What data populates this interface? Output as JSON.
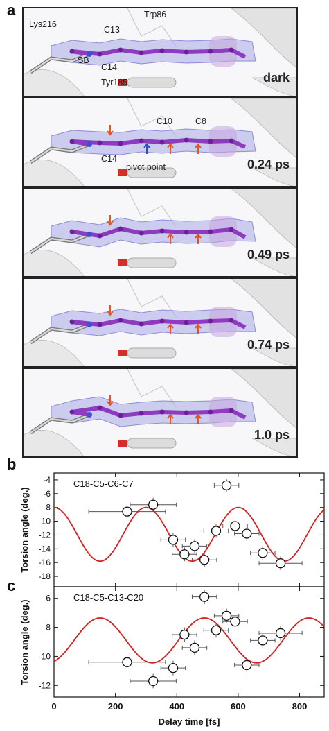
{
  "panel_a": {
    "letter": "a",
    "labels": {
      "lys": "Lys216",
      "trp": "Trp86",
      "c13": "C13",
      "sb": "SB",
      "c14": "C14",
      "tyr": "Tyr185",
      "c10": "C10",
      "c8": "C8",
      "c14b": "C14",
      "pivot": "pivot point"
    },
    "frames": [
      {
        "time": "dark"
      },
      {
        "time": "0.24 ps"
      },
      {
        "time": "0.49 ps"
      },
      {
        "time": "0.74 ps"
      },
      {
        "time": "1.0 ps"
      }
    ],
    "colors": {
      "chromophore": "#8e3bbf",
      "density": "#a9a9e6",
      "arrow_orange": "#e8541c",
      "arrow_blue": "#1f4fd6"
    }
  },
  "chart_data": [
    {
      "panel": "b",
      "type": "scatter",
      "title": "C18-C5-C6-C7",
      "xlim": [
        0,
        880
      ],
      "ylim": [
        -19.5,
        -3
      ],
      "yticks": [
        -4,
        -6,
        -8,
        -10,
        -12,
        -14,
        -16,
        -18
      ],
      "points": [
        {
          "x": 238,
          "y": -8.6,
          "xerr": 125,
          "yerr": 1.0
        },
        {
          "x": 323,
          "y": -7.6,
          "xerr": 75,
          "yerr": 1.0
        },
        {
          "x": 388,
          "y": -12.7,
          "xerr": 40,
          "yerr": 1.0
        },
        {
          "x": 425,
          "y": -14.8,
          "xerr": 40,
          "yerr": 1.0
        },
        {
          "x": 458,
          "y": -13.6,
          "xerr": 40,
          "yerr": 1.0
        },
        {
          "x": 490,
          "y": -15.6,
          "xerr": 40,
          "yerr": 1.0
        },
        {
          "x": 528,
          "y": -11.4,
          "xerr": 40,
          "yerr": 1.0
        },
        {
          "x": 562,
          "y": -4.8,
          "xerr": 40,
          "yerr": 1.0
        },
        {
          "x": 590,
          "y": -10.7,
          "xerr": 40,
          "yerr": 1.0
        },
        {
          "x": 628,
          "y": -11.8,
          "xerr": 40,
          "yerr": 1.0
        },
        {
          "x": 680,
          "y": -14.6,
          "xerr": 40,
          "yerr": 1.0
        },
        {
          "x": 738,
          "y": -16.1,
          "xerr": 70,
          "yerr": 1.0
        }
      ],
      "fit": {
        "color": "#d61f1f",
        "mean": -11.9,
        "amplitude": 3.9,
        "period": 300,
        "phase_max_at": 300
      }
    },
    {
      "panel": "c",
      "type": "scatter",
      "title": "C18-C5-C13-C20",
      "xlim": [
        0,
        880
      ],
      "ylim": [
        -12.8,
        -5.2
      ],
      "yticks": [
        -6,
        -8,
        -10,
        -12
      ],
      "xticks": [
        0,
        200,
        400,
        600,
        800
      ],
      "xlabel": "Delay time [fs]",
      "points": [
        {
          "x": 238,
          "y": -10.4,
          "xerr": 125,
          "yerr": 0.5
        },
        {
          "x": 323,
          "y": -11.7,
          "xerr": 75,
          "yerr": 0.5
        },
        {
          "x": 388,
          "y": -10.8,
          "xerr": 40,
          "yerr": 0.5
        },
        {
          "x": 425,
          "y": -8.5,
          "xerr": 40,
          "yerr": 0.5
        },
        {
          "x": 458,
          "y": -9.4,
          "xerr": 40,
          "yerr": 0.5
        },
        {
          "x": 490,
          "y": -5.9,
          "xerr": 40,
          "yerr": 0.5
        },
        {
          "x": 528,
          "y": -8.2,
          "xerr": 40,
          "yerr": 0.5
        },
        {
          "x": 562,
          "y": -7.2,
          "xerr": 40,
          "yerr": 0.5
        },
        {
          "x": 590,
          "y": -7.6,
          "xerr": 40,
          "yerr": 0.5
        },
        {
          "x": 628,
          "y": -10.6,
          "xerr": 40,
          "yerr": 0.5
        },
        {
          "x": 680,
          "y": -8.9,
          "xerr": 40,
          "yerr": 0.5
        },
        {
          "x": 738,
          "y": -8.4,
          "xerr": 70,
          "yerr": 0.5
        }
      ],
      "fit": {
        "color": "#d61f1f",
        "mean": -8.9,
        "amplitude": 1.55,
        "period": 340,
        "phase_max_at": 150
      }
    }
  ],
  "shared_ylabel": "Torsion angle (deg.)"
}
